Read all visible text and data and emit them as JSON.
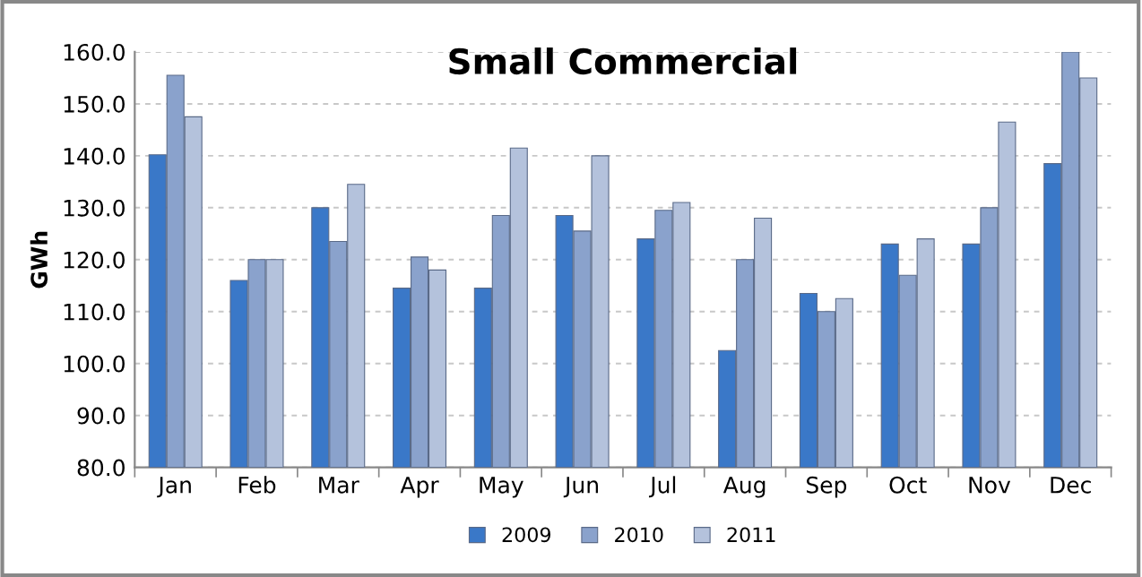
{
  "chart_data": {
    "type": "bar",
    "title": "Small Commercial",
    "ylabel": "GWh",
    "categories": [
      "Jan",
      "Feb",
      "Mar",
      "Apr",
      "May",
      "Jun",
      "Jul",
      "Aug",
      "Sep",
      "Oct",
      "Nov",
      "Dec"
    ],
    "series": [
      {
        "name": "2009",
        "color": "#3a78c8",
        "values": [
          140.2,
          116,
          130,
          114.5,
          114.5,
          128.5,
          124,
          102.5,
          113.5,
          123,
          123,
          138.5
        ]
      },
      {
        "name": "2010",
        "color": "#8aa2cc",
        "values": [
          155.5,
          120,
          123.5,
          120.5,
          128.5,
          125.5,
          129.5,
          120,
          110,
          117,
          130,
          160
        ]
      },
      {
        "name": "2011",
        "color": "#b4c2dc",
        "values": [
          147.5,
          120,
          134.5,
          118,
          141.5,
          140,
          131,
          128,
          112.5,
          124,
          146.5,
          155
        ]
      }
    ],
    "ylim": [
      80,
      160
    ],
    "yticks": [
      {
        "value": 80,
        "label": "80.0"
      },
      {
        "value": 90,
        "label": "90.0"
      },
      {
        "value": 100,
        "label": "100.0"
      },
      {
        "value": 110,
        "label": "110.0"
      },
      {
        "value": 120,
        "label": "120.0"
      },
      {
        "value": 130,
        "label": "130.0"
      },
      {
        "value": 140,
        "label": "140.0"
      },
      {
        "value": 150,
        "label": "150.0"
      },
      {
        "value": 160,
        "label": "160.0"
      }
    ],
    "grid": "y",
    "legend": "bottom"
  }
}
